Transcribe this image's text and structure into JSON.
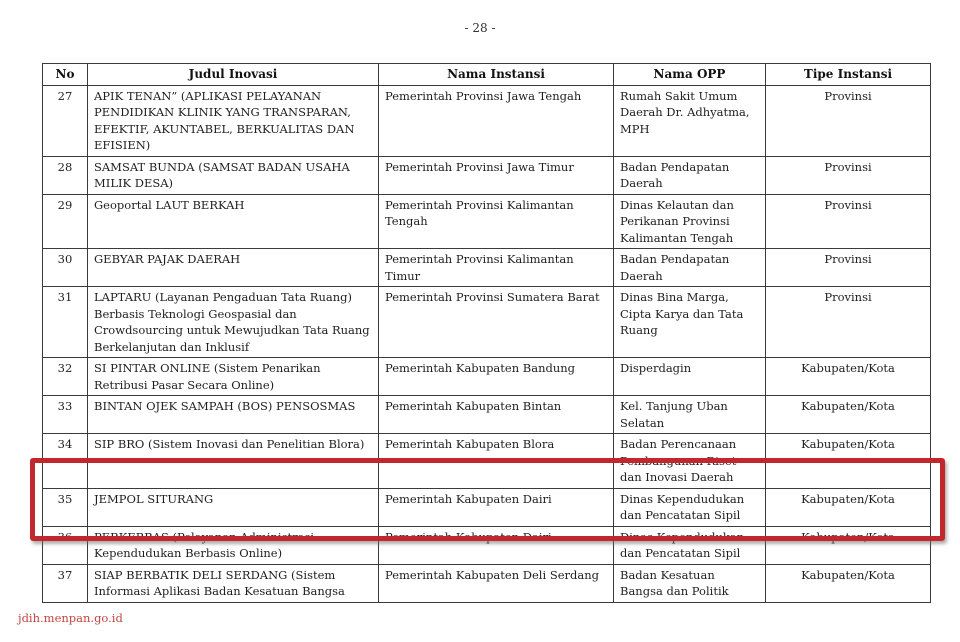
{
  "page": {
    "number_label": "- 28 -",
    "footer_link": "jdih.menpan.go.id"
  },
  "table": {
    "columns": [
      "No",
      "Judul Inovasi",
      "Nama Instansi",
      "Nama OPP",
      "Tipe Instansi"
    ],
    "rows": [
      {
        "no": "27",
        "judul": "APIK TENAN” (APLIKASI PELAYANAN PENDIDIKAN KLINIK YANG TRANSPARAN, EFEKTIF, AKUNTABEL, BERKUALITAS DAN EFISIEN)",
        "instansi": "Pemerintah Provinsi Jawa Tengah",
        "opp": "Rumah Sakit Umum Daerah Dr. Adhyatma, MPH",
        "tipe": "Provinsi"
      },
      {
        "no": "28",
        "judul": "SAMSAT BUNDA (SAMSAT BADAN USAHA MILIK DESA)",
        "instansi": "Pemerintah Provinsi Jawa Timur",
        "opp": "Badan Pendapatan Daerah",
        "tipe": "Provinsi"
      },
      {
        "no": "29",
        "judul": "Geoportal LAUT BERKAH",
        "instansi": "Pemerintah Provinsi Kalimantan Tengah",
        "opp": "Dinas Kelautan dan Perikanan Provinsi Kalimantan Tengah",
        "tipe": "Provinsi"
      },
      {
        "no": "30",
        "judul": "GEBYAR PAJAK DAERAH",
        "instansi": "Pemerintah Provinsi Kalimantan Timur",
        "opp": "Badan Pendapatan Daerah",
        "tipe": "Provinsi"
      },
      {
        "no": "31",
        "judul": "LAPTARU (Layanan Pengaduan Tata Ruang) Berbasis Teknologi Geospasial dan Crowdsourcing untuk Mewujudkan Tata Ruang Berkelanjutan dan Inklusif",
        "instansi": "Pemerintah Provinsi Sumatera Barat",
        "opp": "Dinas Bina Marga, Cipta Karya dan Tata Ruang",
        "tipe": "Provinsi"
      },
      {
        "no": "32",
        "judul": "SI PINTAR ONLINE (Sistem Penarikan Retribusi Pasar Secara Online)",
        "instansi": "Pemerintah Kabupaten Bandung",
        "opp": "Disperdagin",
        "tipe": "Kabupaten/Kota"
      },
      {
        "no": "33",
        "judul": "BINTAN OJEK SAMPAH (BOS) PENSOSMAS",
        "instansi": "Pemerintah Kabupaten Bintan",
        "opp": "Kel. Tanjung Uban Selatan",
        "tipe": "Kabupaten/Kota"
      },
      {
        "no": "34",
        "judul": "SIP BRO (Sistem Inovasi dan Penelitian Blora)",
        "instansi": "Pemerintah Kabupaten Blora",
        "opp": "Badan Perencanaan Pembangunan Riset dan Inovasi Daerah",
        "tipe": "Kabupaten/Kota"
      },
      {
        "no": "35",
        "judul": "JEMPOL SITURANG",
        "instansi": "Pemerintah Kabupaten Dairi",
        "opp": "Dinas Kependudukan dan Pencatatan Sipil",
        "tipe": "Kabupaten/Kota"
      },
      {
        "no": "36",
        "judul": "PERKEBBAS (Pelayanan Administrasi Kependudukan Berbasis Online)",
        "instansi": "Pemerintah Kabupaten Dairi",
        "opp": "Dinas Kependudukan dan Pencatatan Sipil",
        "tipe": "Kabupaten/Kota"
      },
      {
        "no": "37",
        "judul": "SIAP BERBATIK DELI SERDANG (Sistem Informasi Aplikasi Badan Kesatuan Bangsa",
        "instansi": "Pemerintah Kabupaten Deli Serdang",
        "opp": "Badan Kesatuan Bangsa dan Politik",
        "tipe": "Kabupaten/Kota"
      }
    ],
    "highlight": {
      "highlighted_row_numbers": [
        "35",
        "36"
      ],
      "color": "#c1272d"
    }
  }
}
